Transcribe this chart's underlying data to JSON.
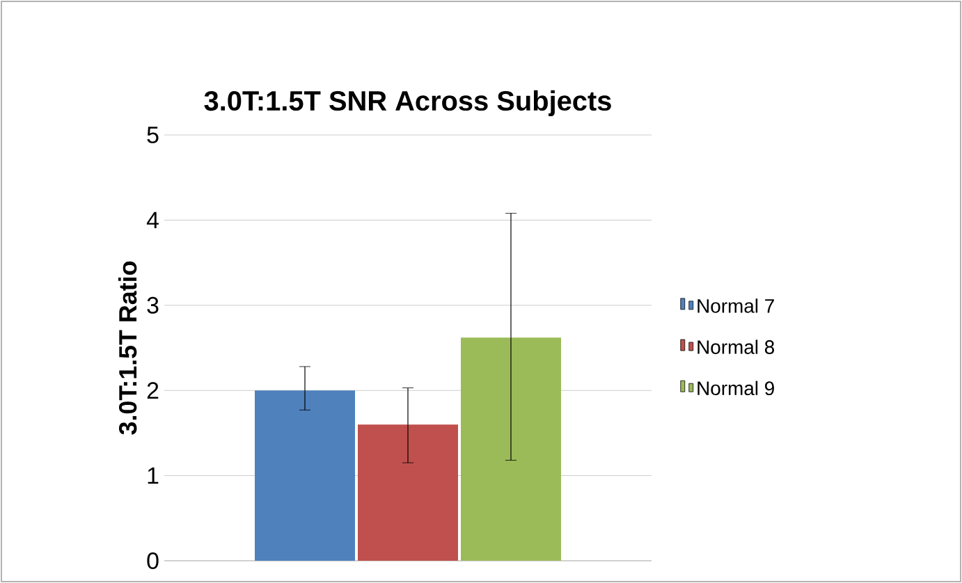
{
  "chart_data": {
    "type": "bar",
    "title": "3.0T:1.5T SNR Across Subjects",
    "ylabel": "3.0T:1.5T Ratio",
    "categories": [
      null
    ],
    "series": [
      {
        "name": "Normal 7",
        "color": "#4f81bd",
        "values": [
          2.0
        ],
        "errors": [
          [
            1.77,
            2.28
          ]
        ]
      },
      {
        "name": "Normal 8",
        "color": "#c0504d",
        "values": [
          1.6
        ],
        "errors": [
          [
            1.15,
            2.03
          ]
        ]
      },
      {
        "name": "Normal 9",
        "color": "#9bbb59",
        "values": [
          2.62
        ],
        "errors": [
          [
            1.18,
            4.08
          ]
        ]
      }
    ],
    "ylim": [
      0,
      5
    ],
    "yticks": [
      0,
      1,
      2,
      3,
      4,
      5
    ],
    "grid": "y",
    "legend": "right"
  }
}
